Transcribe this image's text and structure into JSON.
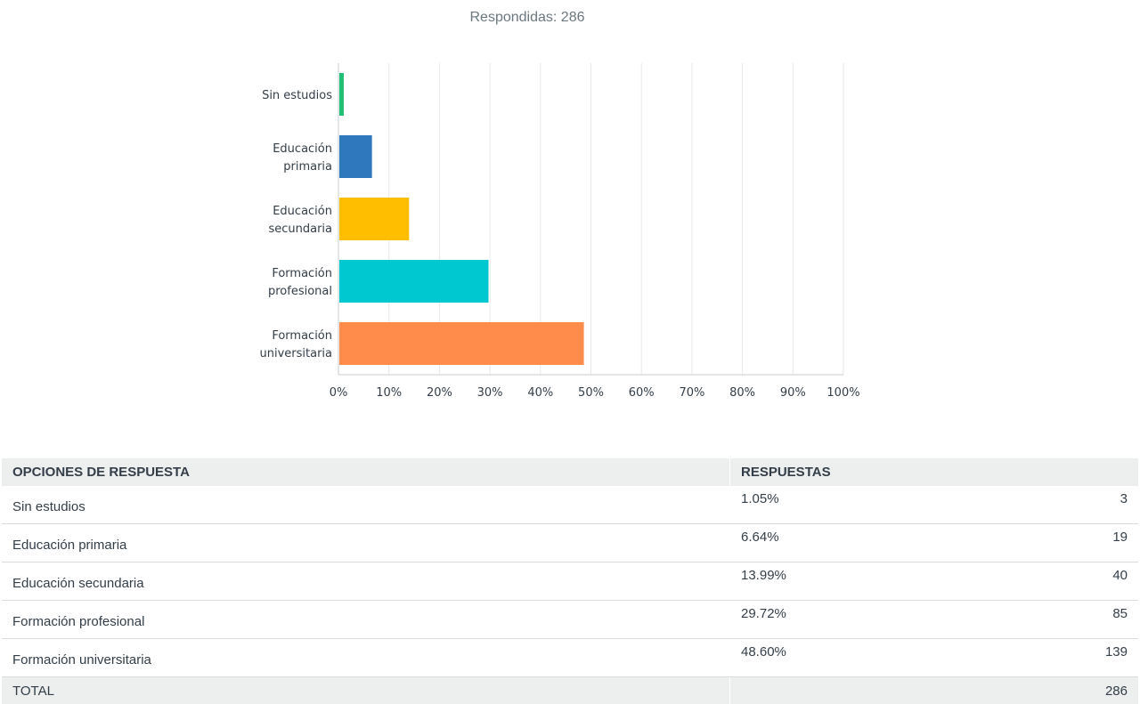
{
  "header": {
    "answered": "Respondidas: 286"
  },
  "chart_data": {
    "type": "bar",
    "orientation": "horizontal",
    "categories": [
      [
        "Sin estudios"
      ],
      [
        "Educación",
        "primaria"
      ],
      [
        "Educación",
        "secundaria"
      ],
      [
        "Formación",
        "profesional"
      ],
      [
        "Formación",
        "universitaria"
      ]
    ],
    "values": [
      1.05,
      6.64,
      13.99,
      29.72,
      48.6
    ],
    "colors": [
      "#21bf73",
      "#2f78bd",
      "#ffbf00",
      "#00c8d0",
      "#ff8c4a"
    ],
    "xlim": [
      0,
      100
    ],
    "xticks": [
      "0%",
      "10%",
      "20%",
      "30%",
      "40%",
      "50%",
      "60%",
      "70%",
      "80%",
      "90%",
      "100%"
    ],
    "grid": true
  },
  "table": {
    "headers": {
      "option": "OPCIONES DE RESPUESTA",
      "responses": "RESPUESTAS"
    },
    "rows": [
      {
        "option": "Sin estudios",
        "percent": "1.05%",
        "count": "3"
      },
      {
        "option": "Educación primaria",
        "percent": "6.64%",
        "count": "19"
      },
      {
        "option": "Educación secundaria",
        "percent": "13.99%",
        "count": "40"
      },
      {
        "option": "Formación profesional",
        "percent": "29.72%",
        "count": "85"
      },
      {
        "option": "Formación universitaria",
        "percent": "48.60%",
        "count": "139"
      }
    ],
    "total": {
      "label": "TOTAL",
      "count": "286"
    }
  }
}
